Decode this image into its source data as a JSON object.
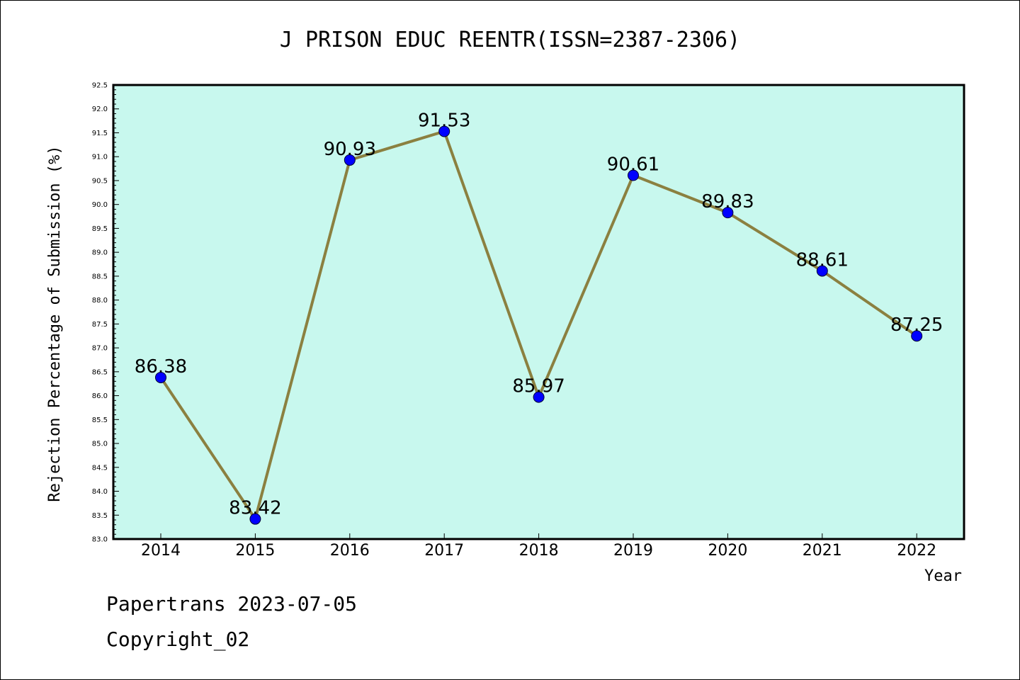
{
  "footer": {
    "line1": "Papertrans 2023-07-05",
    "line2": "Copyright_02"
  },
  "colors": {
    "plot_background": "#c8f8ee",
    "line": "#8b8040",
    "marker": "#0000ff"
  },
  "chart_data": {
    "type": "line",
    "title": "J PRISON EDUC REENTR(ISSN=2387-2306)",
    "xlabel": "Year",
    "ylabel": "Rejection Percentage of Submission (%)",
    "categories": [
      "2014",
      "2015",
      "2016",
      "2017",
      "2018",
      "2019",
      "2020",
      "2021",
      "2022"
    ],
    "values": [
      86.38,
      83.42,
      90.93,
      91.53,
      85.97,
      90.61,
      89.83,
      88.61,
      87.25
    ],
    "data_labels": [
      "86.38",
      "83.42",
      "90.93",
      "91.53",
      "85.97",
      "90.61",
      "89.83",
      "88.61",
      "87.25"
    ],
    "ylim": [
      83.0,
      92.5
    ],
    "yticks": [
      "83.0",
      "83.5",
      "84.0",
      "84.5",
      "85.0",
      "85.5",
      "86.0",
      "86.5",
      "87.0",
      "87.5",
      "88.0",
      "88.5",
      "89.0",
      "89.5",
      "90.0",
      "90.5",
      "91.0",
      "91.5",
      "92.0",
      "92.5"
    ],
    "grid": false,
    "legend": "none"
  }
}
